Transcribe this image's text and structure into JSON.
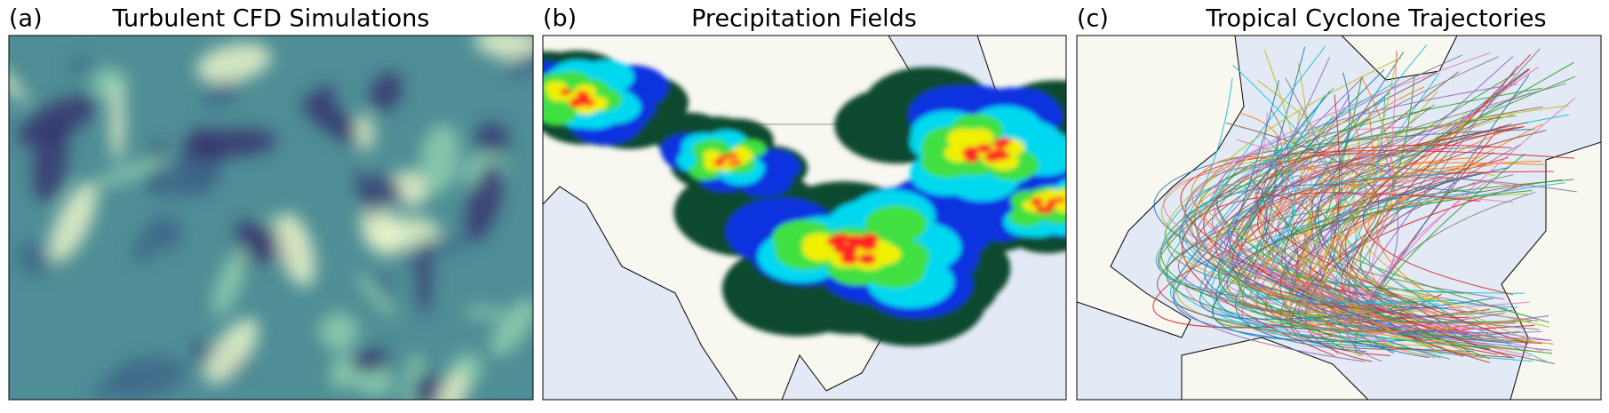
{
  "panels": [
    {
      "label": "(a)",
      "title": "Turbulent CFD Simulations"
    },
    {
      "label": "(b)",
      "title": "Precipitation Fields"
    },
    {
      "label": "(c)",
      "title": "Tropical Cyclone Trajectories"
    }
  ]
}
